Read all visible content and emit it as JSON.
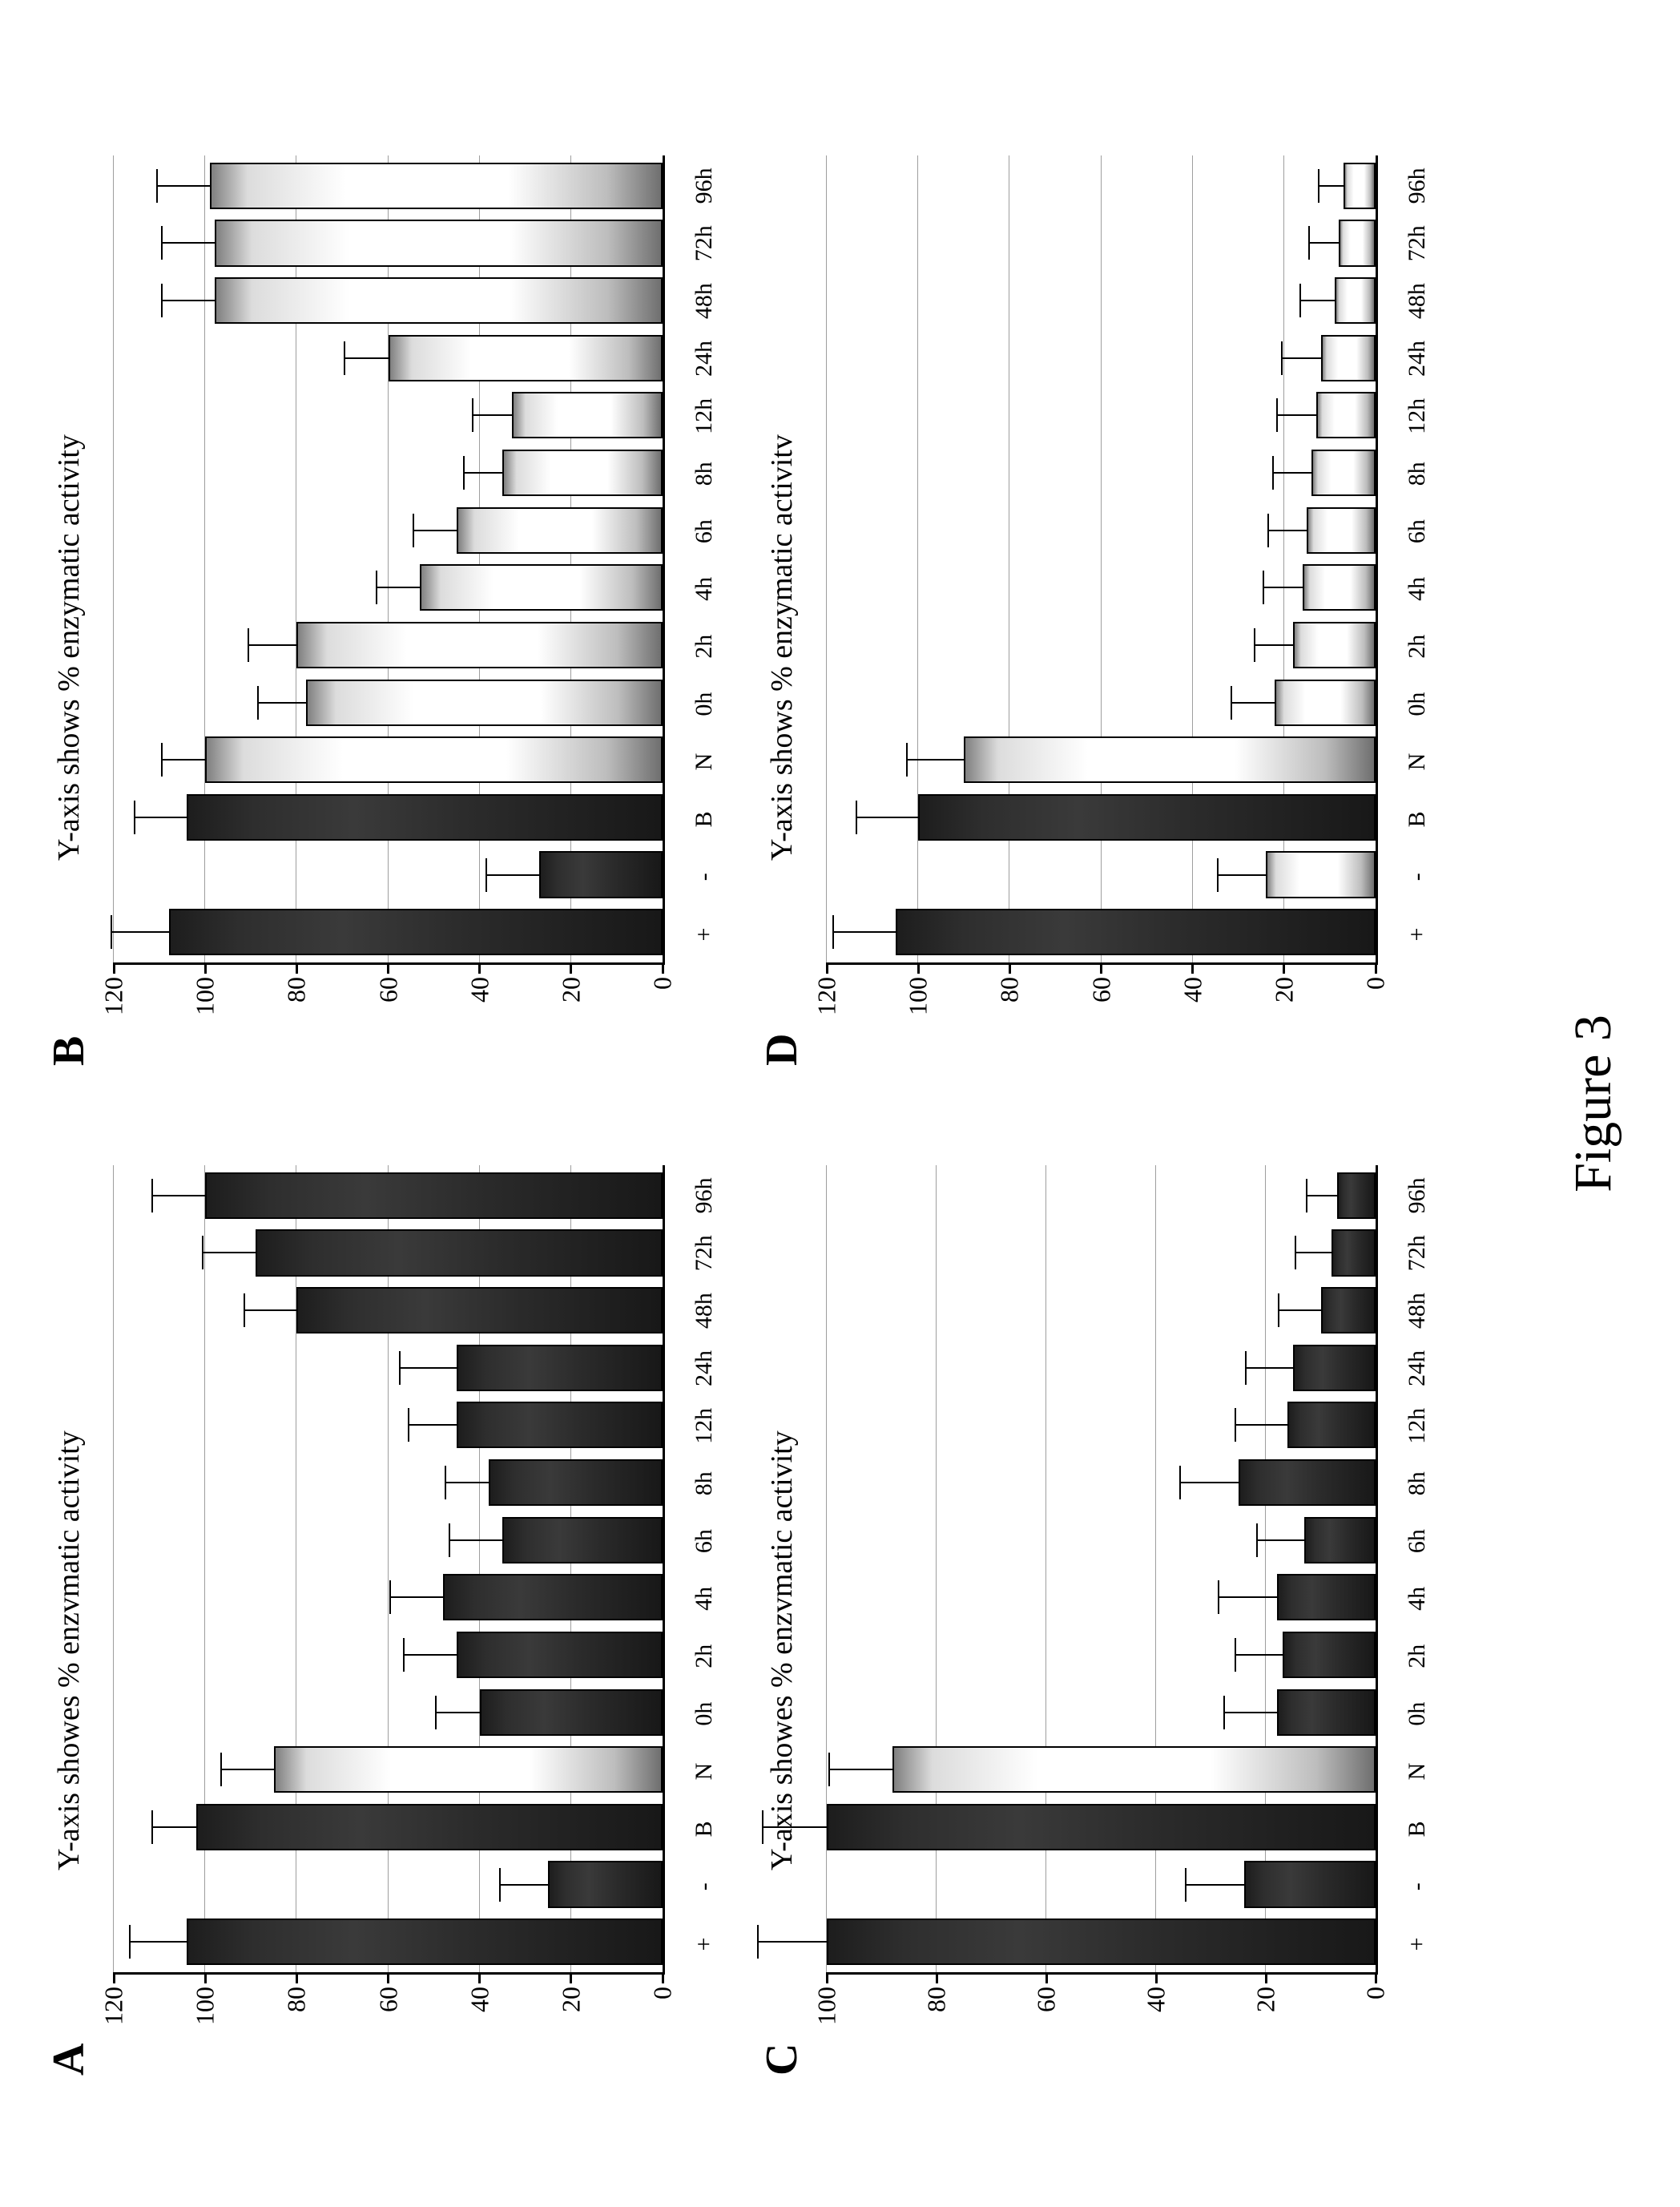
{
  "figure_caption": "Figure 3",
  "palette": {
    "axis_color": "#000000",
    "gridline_color": "#9e9e9e",
    "text_color": "#000000",
    "background_color": "#ffffff",
    "bar_dark": "#262626",
    "bar_light_grad_top": "#808080",
    "bar_light_grad_mid": "#ffffff",
    "bar_light_grad_bottom": "#6f6f6f"
  },
  "typography": {
    "panel_letter_pt": 42,
    "subtitle_pt": 28,
    "axis_label_pt": 24,
    "xlabel_pt": 23,
    "caption_pt": 50,
    "family": "Times New Roman"
  },
  "errorbar_cap_ratio": 0.6,
  "panels": [
    {
      "letter": "A",
      "subtitle": "Y-axis showes % enzvmatic activity",
      "ylim": [
        0,
        120
      ],
      "ytick_step": 20,
      "gridlines_at": [
        20,
        40,
        60,
        80,
        100,
        120
      ],
      "categories": [
        "+",
        "-",
        "B",
        "N",
        "0h",
        "2h",
        "4h",
        "6h",
        "8h",
        "12h",
        "24h",
        "48h",
        "72h",
        "96h"
      ],
      "values": [
        104,
        25,
        102,
        85,
        40,
        45,
        48,
        35,
        38,
        45,
        45,
        80,
        89,
        100
      ],
      "errors": [
        13,
        11,
        10,
        12,
        10,
        12,
        12,
        12,
        10,
        11,
        13,
        12,
        12,
        12
      ],
      "styles": [
        "dark",
        "dark",
        "dark",
        "light",
        "dark",
        "dark",
        "dark",
        "dark",
        "dark",
        "dark",
        "dark",
        "dark",
        "dark",
        "dark"
      ]
    },
    {
      "letter": "B",
      "subtitle": "Y-axis shows % enzymatic activity",
      "ylim": [
        0,
        120
      ],
      "ytick_step": 20,
      "gridlines_at": [
        20,
        40,
        60,
        80,
        100,
        120
      ],
      "categories": [
        "+",
        "-",
        "B",
        "N",
        "0h",
        "2h",
        "4h",
        "6h",
        "8h",
        "12h",
        "24h",
        "48h",
        "72h",
        "96h"
      ],
      "values": [
        108,
        27,
        104,
        100,
        78,
        80,
        53,
        45,
        35,
        33,
        60,
        98,
        98,
        99
      ],
      "errors": [
        13,
        12,
        12,
        10,
        11,
        11,
        10,
        10,
        9,
        9,
        10,
        12,
        12,
        12
      ],
      "styles": [
        "dark",
        "dark",
        "dark",
        "light",
        "light",
        "light",
        "light",
        "light",
        "light",
        "light",
        "light",
        "light",
        "light",
        "light"
      ]
    },
    {
      "letter": "C",
      "subtitle": "Y-axis showes % enzvmatic activity",
      "ylim": [
        0,
        100
      ],
      "ytick_step": 20,
      "gridlines_at": [
        20,
        40,
        60,
        80,
        100
      ],
      "categories": [
        "+",
        "-",
        "B",
        "N",
        "0h",
        "2h",
        "4h",
        "6h",
        "8h",
        "12h",
        "24h",
        "48h",
        "72h",
        "96h"
      ],
      "values": [
        100,
        24,
        100,
        88,
        18,
        17,
        18,
        13,
        25,
        16,
        15,
        10,
        8,
        7
      ],
      "errors": [
        13,
        11,
        12,
        12,
        10,
        9,
        11,
        9,
        11,
        10,
        9,
        8,
        7,
        6
      ],
      "styles": [
        "dark",
        "dark",
        "dark",
        "light",
        "dark",
        "dark",
        "dark",
        "dark",
        "dark",
        "dark",
        "dark",
        "dark",
        "dark",
        "dark"
      ]
    },
    {
      "letter": "D",
      "subtitle": "Y-axis shows % enzymatic activitv",
      "ylim": [
        0,
        120
      ],
      "ytick_step": 20,
      "gridlines_at": [
        20,
        40,
        60,
        80,
        100,
        120
      ],
      "categories": [
        "+",
        "-",
        "B",
        "N",
        "0h",
        "2h",
        "4h",
        "6h",
        "8h",
        "12h",
        "24h",
        "48h",
        "72h",
        "96h"
      ],
      "values": [
        105,
        24,
        100,
        90,
        22,
        18,
        16,
        15,
        14,
        13,
        12,
        9,
        8,
        7
      ],
      "errors": [
        14,
        11,
        14,
        13,
        10,
        9,
        9,
        9,
        9,
        9,
        9,
        8,
        7,
        6
      ],
      "styles": [
        "dark",
        "light",
        "dark",
        "light",
        "light",
        "light",
        "light",
        "light",
        "light",
        "light",
        "light",
        "light",
        "light",
        "light"
      ]
    }
  ]
}
